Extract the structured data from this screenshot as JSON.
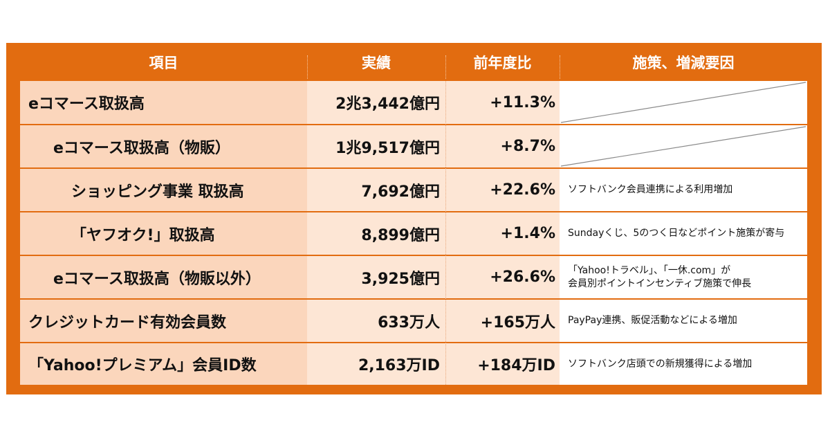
{
  "header": {
    "item": "項目",
    "result": "実績",
    "yoy": "前年度比",
    "measures": "施策、増減要因"
  },
  "rows": [
    {
      "item": "eコマース取扱高",
      "result": "2兆3,442億円",
      "yoy": "+11.3%",
      "note1": "",
      "note2": ""
    },
    {
      "item": "eコマース取扱高（物販）",
      "result": "1兆9,517億円",
      "yoy": "+8.7%",
      "note1": "",
      "note2": ""
    },
    {
      "item": "ショッピング事業 取扱高",
      "result": "7,692億円",
      "yoy": "+22.6%",
      "note1": "ソフトバンク会員連携による利用増加",
      "note2": ""
    },
    {
      "item": "「ヤフオク!」取扱高",
      "result": "8,899億円",
      "yoy": "+1.4%",
      "note1": "Sundayくじ、5のつく日などポイント施策が寄与",
      "note2": ""
    },
    {
      "item": "eコマース取扱高（物販以外）",
      "result": "3,925億円",
      "yoy": "+26.6%",
      "note1": "「Yahoo!トラベル」、「一休.com」が",
      "note2": "会員別ポイントインセンティブ施策で伸長"
    },
    {
      "item": "クレジットカード有効会員数",
      "result": "633万人",
      "yoy": "+165万人",
      "note1": "PayPay連携、販促活動などによる増加",
      "note2": ""
    },
    {
      "item": "「Yahoo!プレミアム」会員ID数",
      "result": "2,163万ID",
      "yoy": "+184万ID",
      "note1": "ソフトバンク店頭での新規獲得による増加",
      "note2": ""
    }
  ]
}
